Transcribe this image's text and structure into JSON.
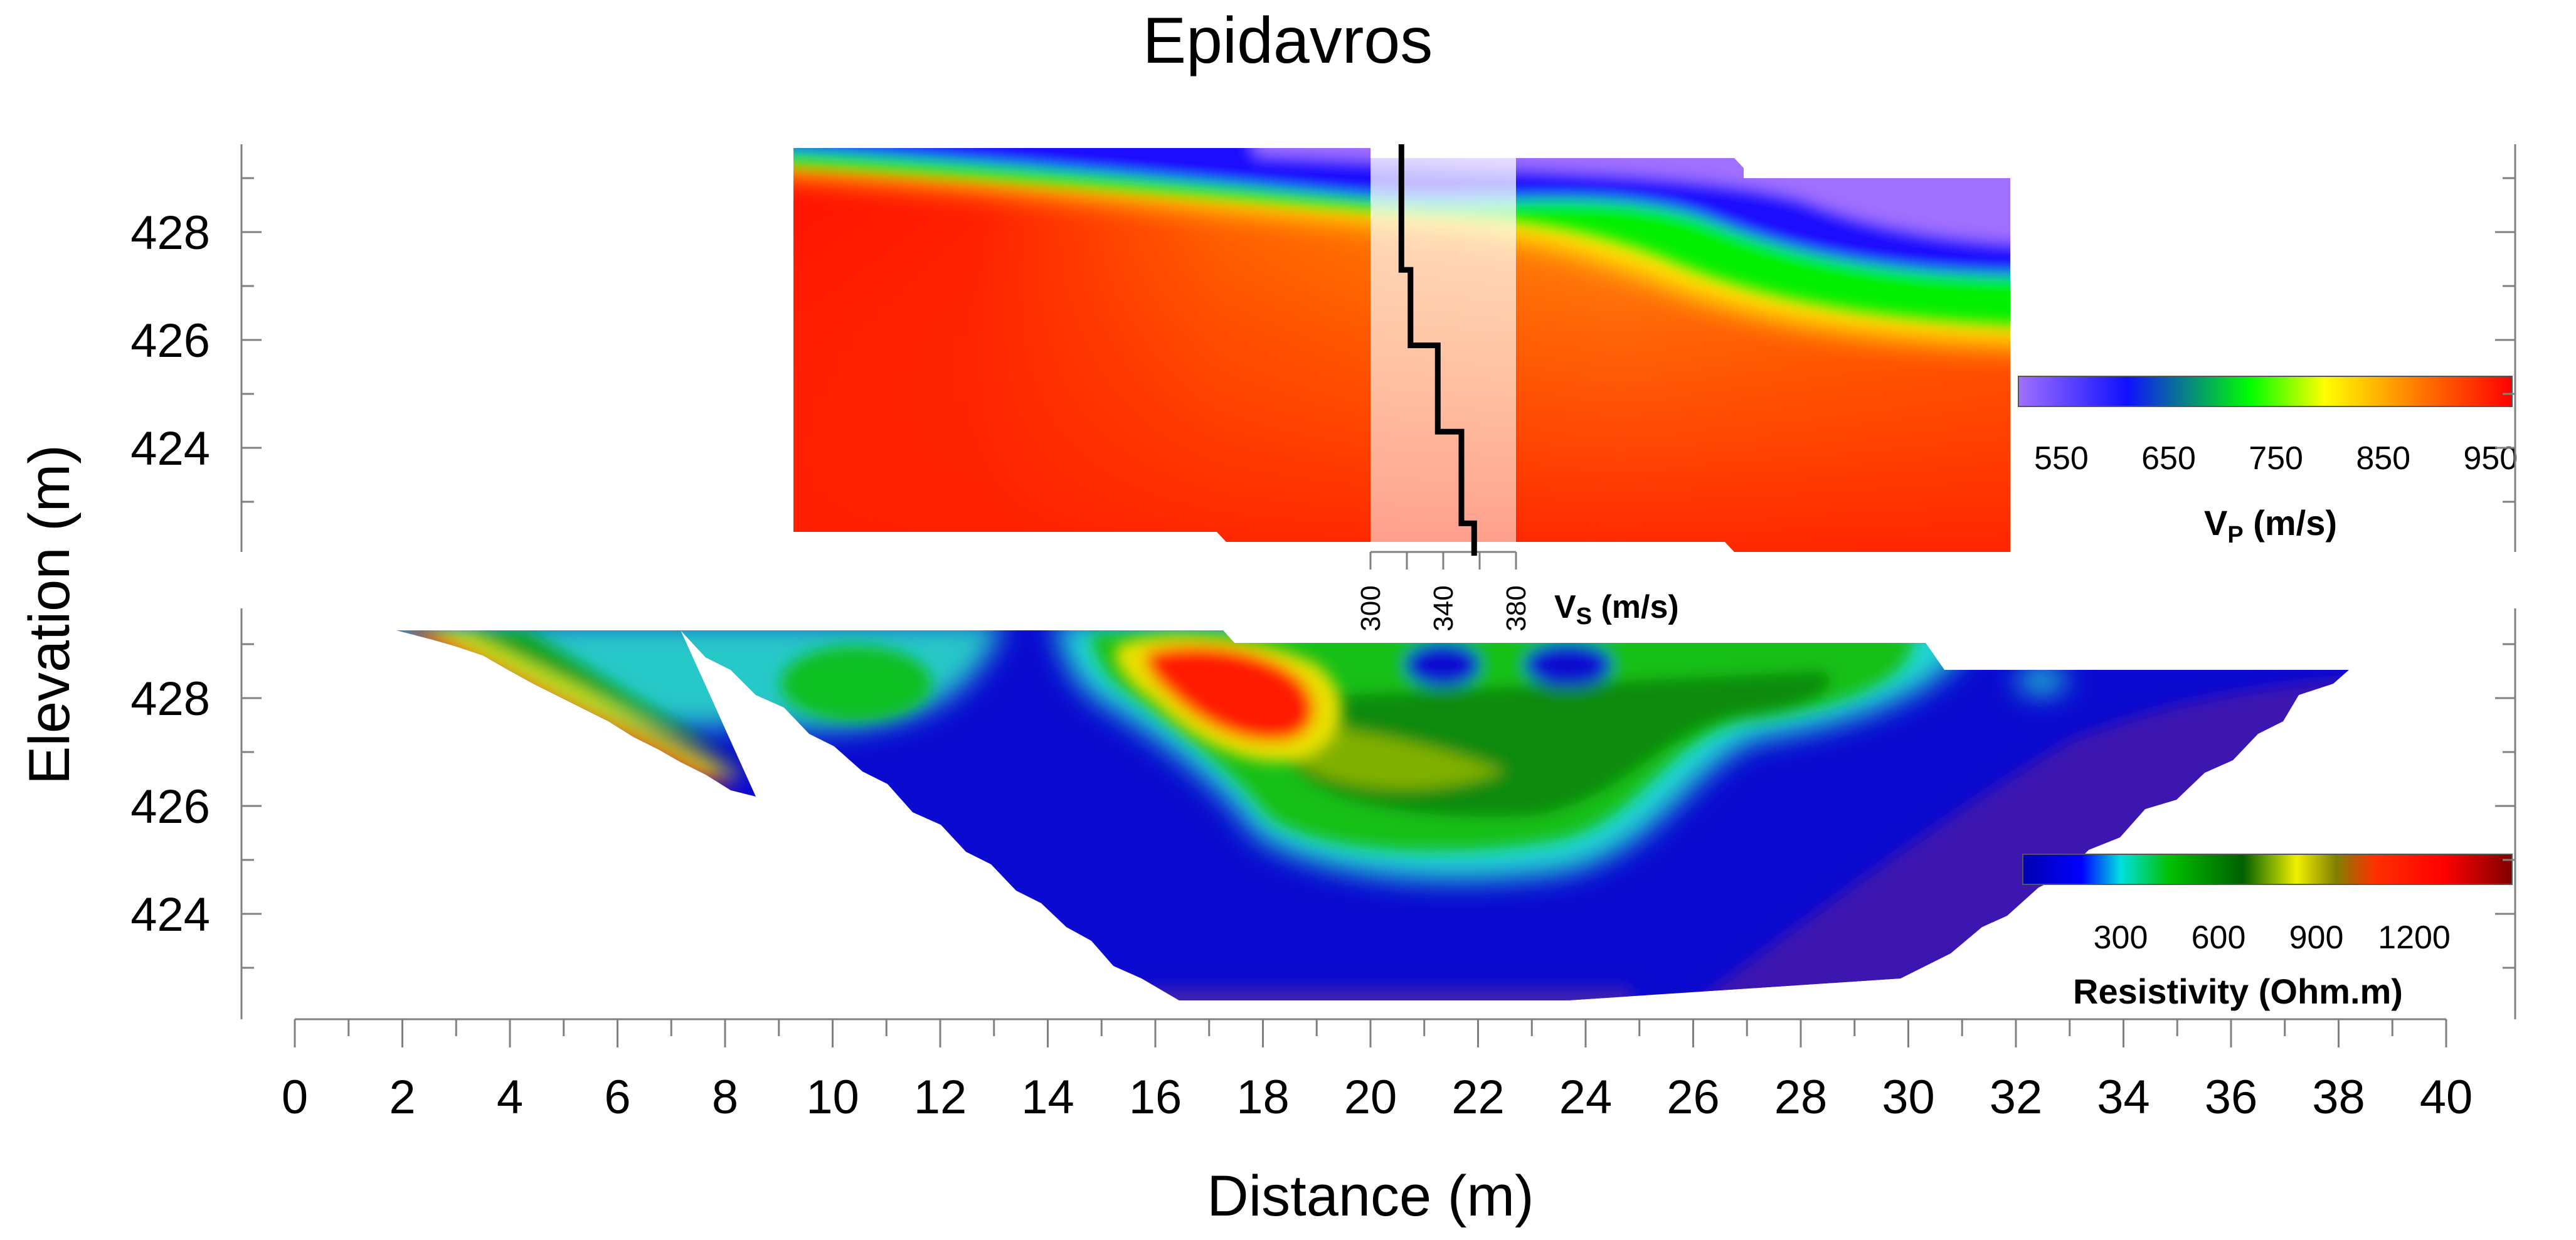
{
  "chart_data": {
    "type": "heatmap",
    "title": "Epidavros",
    "xlabel": "Distance (m)",
    "ylabel": "Elevation (m)",
    "xlim": [
      0,
      40
    ],
    "x_ticks": [
      "0",
      "2",
      "4",
      "6",
      "8",
      "10",
      "12",
      "14",
      "16",
      "18",
      "20",
      "22",
      "24",
      "26",
      "28",
      "30",
      "32",
      "34",
      "36",
      "38",
      "40"
    ],
    "y_ticks": [
      "428",
      "426",
      "424"
    ],
    "panels": [
      {
        "name": "seismic-refraction-vp",
        "colorbar": {
          "label_main": "V",
          "label_sub": "P",
          "label_unit": " (m/s)",
          "ticks": [
            "550",
            "650",
            "750",
            "850",
            "950"
          ],
          "range": [
            510,
            970
          ],
          "colors": [
            "#a070ff",
            "#1010ff",
            "#00ff00",
            "#ffff00",
            "#ff8000",
            "#ff0000"
          ]
        },
        "vs_profile": {
          "label_main": "V",
          "label_sub": "S",
          "label_unit": " (m/s)",
          "ticks": [
            "300",
            "340",
            "380"
          ],
          "x_at_distance": 20.5,
          "layers": [
            {
              "top": 429.6,
              "bottom": 427.3,
              "vs": 317
            },
            {
              "top": 427.3,
              "bottom": 425.9,
              "vs": 322
            },
            {
              "top": 425.9,
              "bottom": 424.3,
              "vs": 337
            },
            {
              "top": 424.3,
              "bottom": 422.6,
              "vs": 350
            },
            {
              "top": 422.6,
              "bottom": 422.0,
              "vs": 357
            }
          ]
        }
      },
      {
        "name": "electrical-resistivity",
        "colorbar": {
          "label": "Resistivity (Ohm.m)",
          "ticks": [
            "300",
            "600",
            "900",
            "1200"
          ],
          "range": [
            0,
            1500
          ],
          "colors": [
            "#0000c0",
            "#00d0d0",
            "#00c000",
            "#008000",
            "#e0e000",
            "#ff0000",
            "#900000"
          ]
        }
      }
    ]
  }
}
